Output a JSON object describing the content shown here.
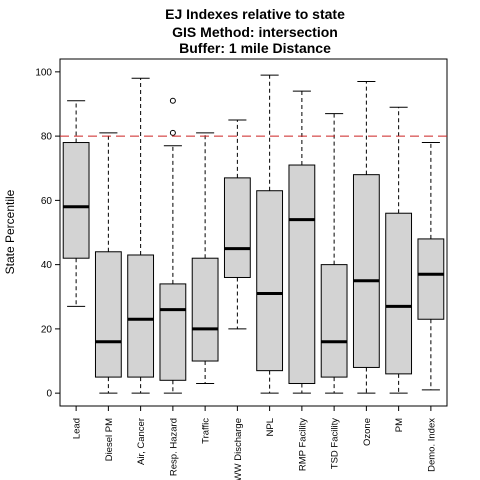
{
  "chart_data": {
    "type": "boxplot",
    "title_lines": [
      "EJ Indexes relative to state",
      "GIS Method: intersection",
      "Buffer: 1 mile Distance"
    ],
    "xlabel": "",
    "ylabel": "State Percentile",
    "ylim": [
      -4,
      104
    ],
    "yticks": [
      "0",
      "20",
      "40",
      "60",
      "80",
      "100"
    ],
    "reference_line": {
      "value": 80,
      "color": "#cc2222",
      "style": "dashed"
    },
    "box_fill": "#d3d3d3",
    "categories": [
      "Lead",
      "Diesel PM",
      "Air, Cancer",
      "Resp. Hazard",
      "Traffic",
      "WW Discharge",
      "NPL",
      "RMP Facility",
      "TSD Facility",
      "Ozone",
      "PM",
      "Demo. Index"
    ],
    "boxes": [
      {
        "category": "Lead",
        "min": 27,
        "q1": 42,
        "median": 58,
        "q3": 78,
        "max": 91,
        "outliers": []
      },
      {
        "category": "Diesel PM",
        "min": 0,
        "q1": 5,
        "median": 16,
        "q3": 44,
        "max": 81,
        "outliers": []
      },
      {
        "category": "Air, Cancer",
        "min": 0,
        "q1": 5,
        "median": 23,
        "q3": 43,
        "max": 98,
        "outliers": []
      },
      {
        "category": "Resp. Hazard",
        "min": 0,
        "q1": 4,
        "median": 26,
        "q3": 34,
        "max": 77,
        "outliers": [
          81,
          91
        ]
      },
      {
        "category": "Traffic",
        "min": 3,
        "q1": 10,
        "median": 20,
        "q3": 42,
        "max": 81,
        "outliers": []
      },
      {
        "category": "WW Discharge",
        "min": 20,
        "q1": 36,
        "median": 45,
        "q3": 67,
        "max": 85,
        "outliers": []
      },
      {
        "category": "NPL",
        "min": 0,
        "q1": 7,
        "median": 31,
        "q3": 63,
        "max": 99,
        "outliers": []
      },
      {
        "category": "RMP Facility",
        "min": 0,
        "q1": 3,
        "median": 54,
        "q3": 71,
        "max": 94,
        "outliers": []
      },
      {
        "category": "TSD Facility",
        "min": 0,
        "q1": 5,
        "median": 16,
        "q3": 40,
        "max": 87,
        "outliers": []
      },
      {
        "category": "Ozone",
        "min": 0,
        "q1": 8,
        "median": 35,
        "q3": 68,
        "max": 97,
        "outliers": []
      },
      {
        "category": "PM",
        "min": 0,
        "q1": 6,
        "median": 27,
        "q3": 56,
        "max": 89,
        "outliers": []
      },
      {
        "category": "Demo. Index",
        "min": 1,
        "q1": 23,
        "median": 37,
        "q3": 48,
        "max": 78,
        "outliers": []
      }
    ]
  }
}
